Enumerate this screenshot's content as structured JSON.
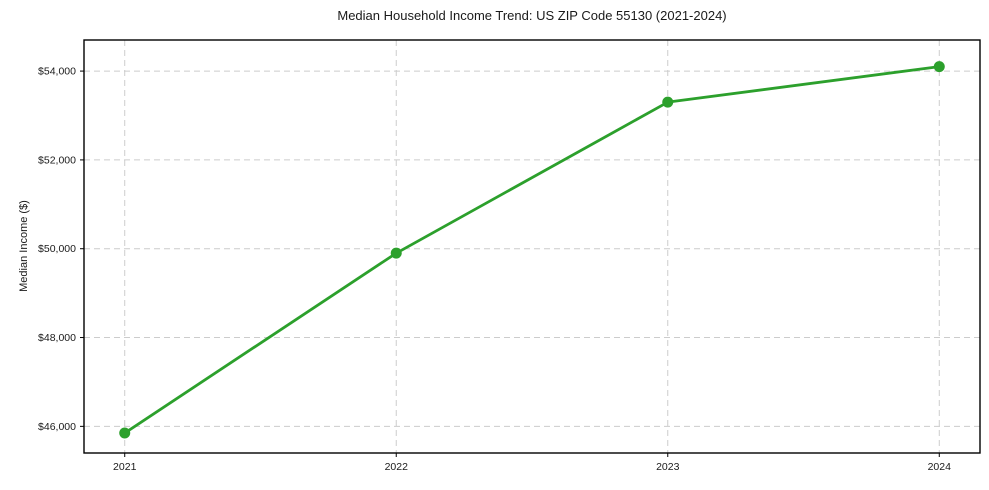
{
  "chart_data": {
    "type": "line",
    "title": "Median Household Income Trend: US ZIP Code 55130 (2021-2024)",
    "xlabel": "",
    "ylabel": "Median Income ($)",
    "x": [
      2021,
      2022,
      2023,
      2024
    ],
    "y": [
      45850,
      49900,
      53300,
      54100
    ],
    "xtick_labels": [
      "2021",
      "2022",
      "2023",
      "2024"
    ],
    "ytick_values": [
      46000,
      48000,
      50000,
      52000,
      54000
    ],
    "ytick_labels": [
      "$46,000",
      "$48,000",
      "$50,000",
      "$52,000",
      "$54,000"
    ],
    "xlim": [
      2020.85,
      2024.15
    ],
    "ylim": [
      45400,
      54700
    ],
    "grid": true,
    "grid_style": "dashed",
    "legend": false,
    "line_color": "#2ca02c",
    "marker": "circle",
    "background_color": "#ffffff",
    "grid_color": "#cccccc",
    "axis_color": "#000000",
    "text_color": "#1a1a1a"
  }
}
